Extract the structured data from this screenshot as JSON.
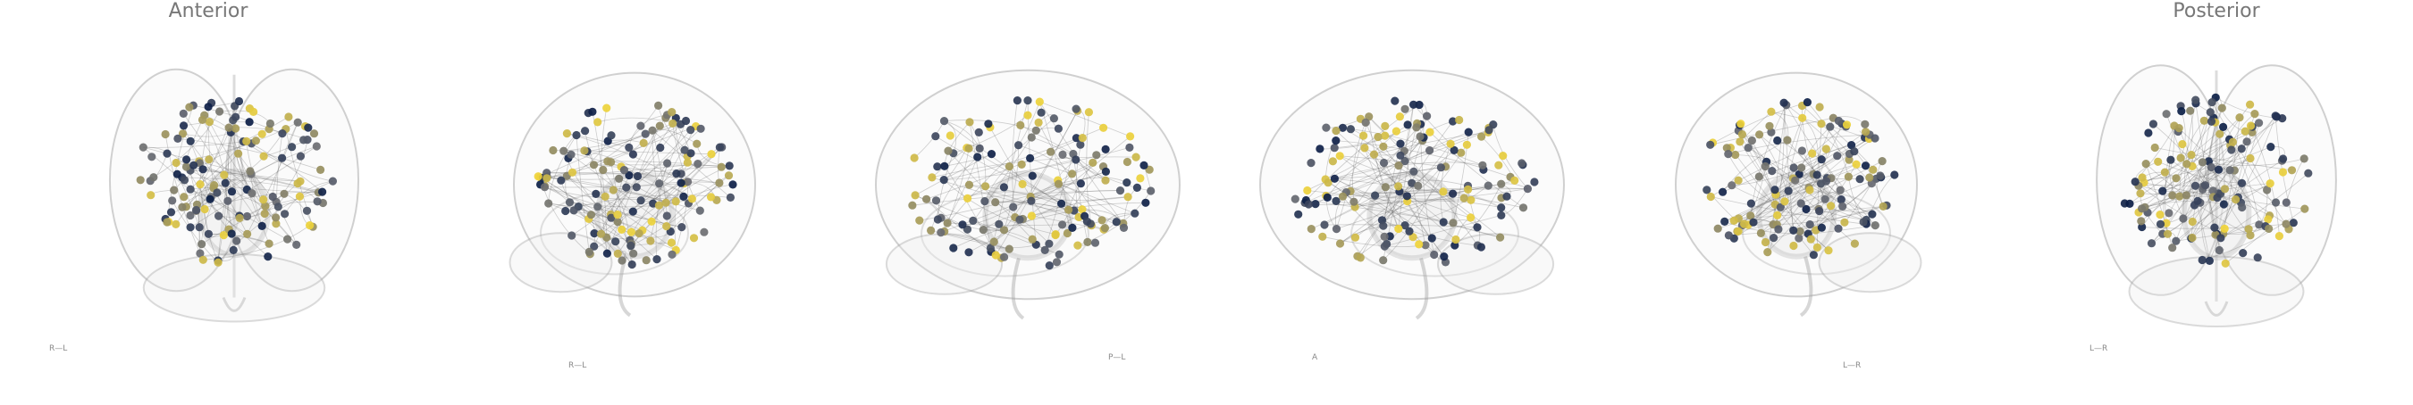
{
  "titles": {
    "first": "Anterior",
    "last": "Posterior"
  },
  "views": [
    {
      "name": "anterior",
      "orientation": "R—L"
    },
    {
      "name": "right-oblique",
      "orientation": "R—L"
    },
    {
      "name": "right-lateral",
      "orientation": "P—L"
    },
    {
      "name": "left-lateral",
      "orientation": "A"
    },
    {
      "name": "left-oblique",
      "orientation": "L—R"
    },
    {
      "name": "posterior",
      "orientation": "L—R"
    }
  ],
  "colors": {
    "node_low": "#0a1d46",
    "node_mid": "#6b6d73",
    "node_high": "#f0d43a",
    "brain_outline": "#9a9a9a",
    "edges": "#555555",
    "title": "#777777"
  },
  "node_count_per_view": 140
}
